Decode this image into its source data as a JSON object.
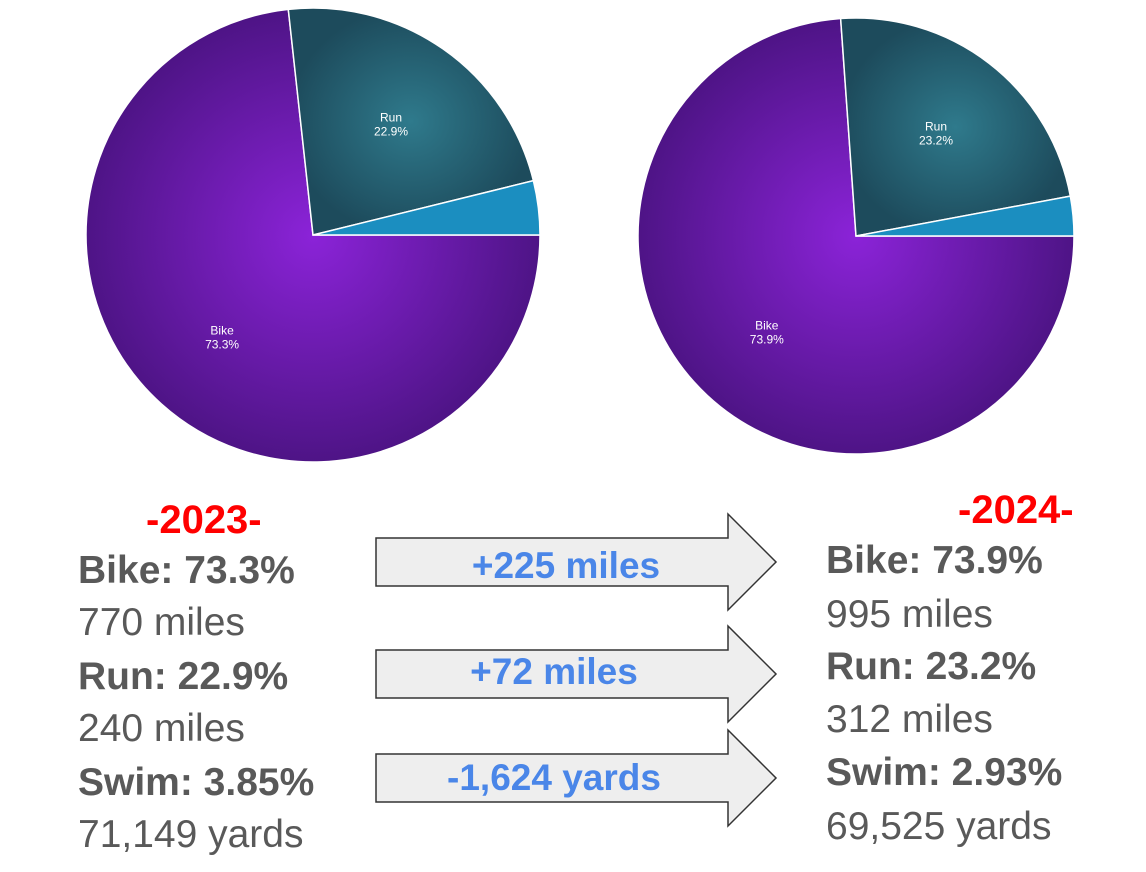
{
  "chart_data": [
    {
      "type": "pie",
      "year": "2023",
      "slices": [
        {
          "label": "Bike",
          "value": 73.3,
          "display": "73.3%",
          "color": "#6a1bb0",
          "label_shown": true
        },
        {
          "label": "Run",
          "value": 22.9,
          "display": "22.9%",
          "color": "#21566a",
          "label_shown": true
        },
        {
          "label": "Swim",
          "value": 3.85,
          "display": "3.85%",
          "color": "#1b8ec0",
          "label_shown": false
        }
      ]
    },
    {
      "type": "pie",
      "year": "2024",
      "slices": [
        {
          "label": "Bike",
          "value": 73.9,
          "display": "73.9%",
          "color": "#6a1bb0",
          "label_shown": true
        },
        {
          "label": "Run",
          "value": 23.2,
          "display": "23.2%",
          "color": "#21566a",
          "label_shown": true
        },
        {
          "label": "Swim",
          "value": 2.93,
          "display": "2.93%",
          "color": "#1b8ec0",
          "label_shown": false
        }
      ]
    }
  ],
  "left": {
    "year": "-2023-",
    "bike_pct": "Bike: 73.3%",
    "bike_dist": "770 miles",
    "run_pct": "Run: 22.9%",
    "run_dist": "240 miles",
    "swim_pct": "Swim: 3.85%",
    "swim_dist": "71,149 yards"
  },
  "right": {
    "year": "-2024-",
    "bike_pct": "Bike: 73.9%",
    "bike_dist": "995 miles",
    "run_pct": "Run: 23.2%",
    "run_dist": "312 miles",
    "swim_pct": "Swim: 2.93%",
    "swim_dist": "69,525 yards"
  },
  "changes": {
    "bike": "+225 miles",
    "run": "+72 miles",
    "swim": "-1,624 yards"
  },
  "colors": {
    "year": "#ff0000",
    "stat_text": "#595959",
    "change_text": "#4a86e8",
    "arrow_fill": "#eeeeee",
    "arrow_stroke": "#333333"
  }
}
